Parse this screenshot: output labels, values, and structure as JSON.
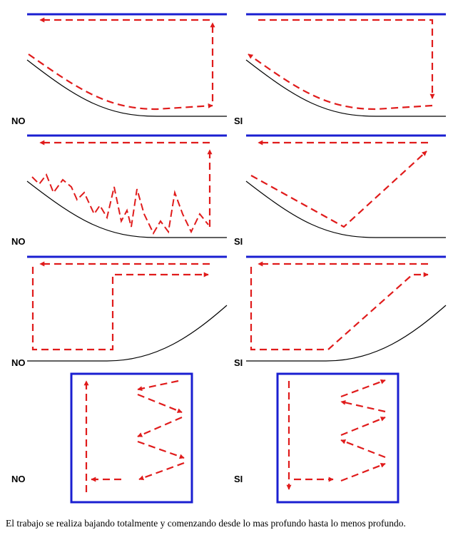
{
  "panels": [
    {
      "id": "row1-left",
      "verdict": "NO"
    },
    {
      "id": "row1-right",
      "verdict": "SI"
    },
    {
      "id": "row2-left",
      "verdict": "NO"
    },
    {
      "id": "row2-right",
      "verdict": "SI"
    },
    {
      "id": "row3-left",
      "verdict": "NO"
    },
    {
      "id": "row3-right",
      "verdict": "SI"
    },
    {
      "id": "row4-left",
      "verdict": "NO"
    },
    {
      "id": "row4-right",
      "verdict": "SI"
    }
  ],
  "caption": "El trabajo se realiza bajando totalmente y comenzando desde lo mas profundo hasta lo menos profundo.",
  "colors": {
    "surface_line": "#1a1fd1",
    "path": "#e01b1b",
    "bottom": "#000000",
    "frame": "#1a1fd1"
  }
}
